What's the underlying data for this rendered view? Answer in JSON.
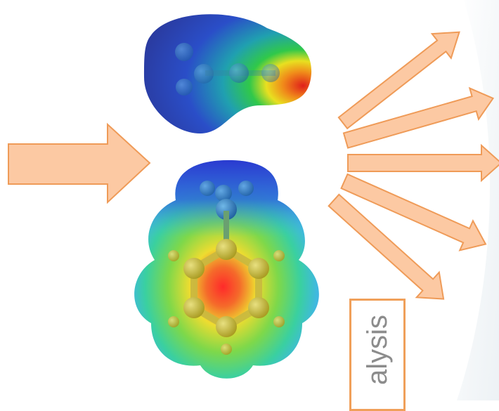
{
  "label": {
    "text": "alysis"
  },
  "colors": {
    "arrow_fill": "#fcc9a3",
    "arrow_stroke": "#ef9b58",
    "label_border": "#f0a05a",
    "label_text": "#8c8c8c"
  },
  "molecules": [
    {
      "name": "small-molecule-esp-surface",
      "icon": "electrostatic-potential-map"
    },
    {
      "name": "toluene-esp-surface",
      "icon": "electrostatic-potential-map"
    }
  ]
}
